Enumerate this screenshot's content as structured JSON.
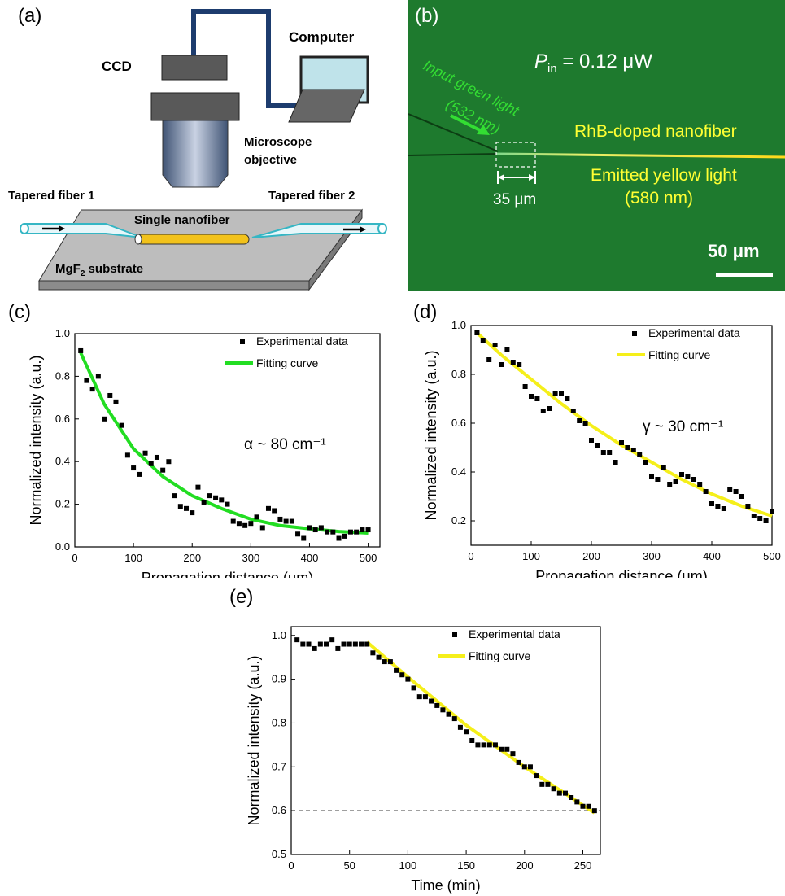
{
  "panels": {
    "a": {
      "label": "(a)",
      "ccd": "CCD",
      "computer": "Computer",
      "objective_line1": "Microscope",
      "objective_line2": "objective",
      "tapered1": "Tapered fiber 1",
      "tapered2": "Tapered fiber 2",
      "nanofiber": "Single nanofiber",
      "substrate_pre": "MgF",
      "substrate_sub": "2",
      "substrate_post": " substrate"
    },
    "b": {
      "label": "(b)",
      "pin_p": "P",
      "pin_sub": "in",
      "pin_val": " = 0.12 μW",
      "input_line1": "Input green light",
      "input_line2": "(532 nm)",
      "rhb": "RhB-doped nanofiber",
      "emit_line1": "Emitted yellow light",
      "emit_line2": "(580 nm)",
      "dist": "35 μm",
      "scale": "50 μm",
      "colors": {
        "background": "#1e7a2e",
        "green_light": "#33dd33",
        "yellow_text": "#ffff33"
      }
    }
  },
  "chart_data": [
    {
      "panel": "(c)",
      "type": "scatter",
      "xlabel": "Propagation distance (μm)",
      "ylabel": "Normalized intensity (a.u.)",
      "xlim": [
        0,
        520
      ],
      "ylim": [
        0,
        1.0
      ],
      "xticks": [
        0,
        100,
        200,
        300,
        400,
        500
      ],
      "yticks": [
        0.0,
        0.2,
        0.4,
        0.6,
        0.8,
        1.0
      ],
      "annotation": "α ~ 80 cm⁻¹",
      "legend": [
        "Experimental data",
        "Fitting curve"
      ],
      "legend_position": "top-right",
      "fit_color": "#22dd22",
      "series": [
        {
          "name": "Experimental data",
          "x": [
            10,
            20,
            30,
            40,
            50,
            60,
            70,
            80,
            90,
            100,
            110,
            120,
            130,
            140,
            150,
            160,
            170,
            180,
            190,
            200,
            210,
            220,
            230,
            240,
            250,
            260,
            270,
            280,
            290,
            300,
            310,
            320,
            330,
            340,
            350,
            360,
            370,
            380,
            390,
            400,
            410,
            420,
            430,
            440,
            450,
            460,
            470,
            480,
            490,
            500
          ],
          "y": [
            0.92,
            0.78,
            0.74,
            0.8,
            0.6,
            0.71,
            0.68,
            0.57,
            0.43,
            0.37,
            0.34,
            0.44,
            0.39,
            0.42,
            0.36,
            0.4,
            0.24,
            0.19,
            0.18,
            0.16,
            0.28,
            0.21,
            0.24,
            0.23,
            0.22,
            0.2,
            0.12,
            0.11,
            0.1,
            0.11,
            0.14,
            0.09,
            0.18,
            0.17,
            0.13,
            0.12,
            0.12,
            0.06,
            0.04,
            0.09,
            0.08,
            0.09,
            0.07,
            0.07,
            0.04,
            0.05,
            0.07,
            0.07,
            0.08,
            0.08
          ]
        },
        {
          "name": "Fitting curve",
          "x": [
            10,
            50,
            100,
            150,
            200,
            250,
            300,
            350,
            400,
            450,
            500
          ],
          "y": [
            0.91,
            0.67,
            0.46,
            0.33,
            0.24,
            0.18,
            0.13,
            0.1,
            0.085,
            0.072,
            0.065
          ]
        }
      ]
    },
    {
      "panel": "(d)",
      "type": "scatter",
      "xlabel": "Propagation distance (μm)",
      "ylabel": "Normalized intensity (a.u.)",
      "xlim": [
        0,
        500
      ],
      "ylim": [
        0.1,
        1.0
      ],
      "xticks": [
        0,
        100,
        200,
        300,
        400,
        500
      ],
      "yticks": [
        0.2,
        0.4,
        0.6,
        0.8,
        1.0
      ],
      "annotation": "γ ~ 30 cm⁻¹",
      "legend": [
        "Experimental data",
        "Fitting curve"
      ],
      "legend_position": "top-right",
      "fit_color": "#f5ef1a",
      "series": [
        {
          "name": "Experimental data",
          "x": [
            10,
            20,
            30,
            40,
            50,
            60,
            70,
            80,
            90,
            100,
            110,
            120,
            130,
            140,
            150,
            160,
            170,
            180,
            190,
            200,
            210,
            220,
            230,
            240,
            250,
            260,
            270,
            280,
            290,
            300,
            310,
            320,
            330,
            340,
            350,
            360,
            370,
            380,
            390,
            400,
            410,
            420,
            430,
            440,
            450,
            460,
            470,
            480,
            490,
            500
          ],
          "y": [
            0.97,
            0.94,
            0.86,
            0.92,
            0.84,
            0.9,
            0.85,
            0.84,
            0.75,
            0.71,
            0.7,
            0.65,
            0.66,
            0.72,
            0.72,
            0.7,
            0.65,
            0.61,
            0.6,
            0.53,
            0.51,
            0.48,
            0.48,
            0.44,
            0.52,
            0.5,
            0.49,
            0.47,
            0.44,
            0.38,
            0.37,
            0.42,
            0.35,
            0.36,
            0.39,
            0.38,
            0.37,
            0.35,
            0.32,
            0.27,
            0.26,
            0.25,
            0.33,
            0.32,
            0.3,
            0.26,
            0.22,
            0.21,
            0.2,
            0.24
          ]
        },
        {
          "name": "Fitting curve",
          "x": [
            10,
            50,
            100,
            150,
            200,
            250,
            300,
            350,
            400,
            450,
            500
          ],
          "y": [
            0.97,
            0.88,
            0.78,
            0.68,
            0.59,
            0.51,
            0.44,
            0.37,
            0.31,
            0.26,
            0.22
          ]
        }
      ]
    },
    {
      "panel": "(e)",
      "type": "scatter",
      "xlabel": "Time (min)",
      "ylabel": "Normalized intensity (a.u.)",
      "xlim": [
        0,
        265
      ],
      "ylim": [
        0.5,
        1.02
      ],
      "xticks": [
        0,
        50,
        100,
        150,
        200,
        250
      ],
      "yticks": [
        0.5,
        0.6,
        0.7,
        0.8,
        0.9,
        1.0
      ],
      "reference_line_y": 0.6,
      "legend": [
        "Experimental data",
        "Fitting curve"
      ],
      "legend_position": "top-right",
      "fit_color": "#f5ef1a",
      "series": [
        {
          "name": "Experimental data",
          "x": [
            5,
            10,
            15,
            20,
            25,
            30,
            35,
            40,
            45,
            50,
            55,
            60,
            65,
            70,
            75,
            80,
            85,
            90,
            95,
            100,
            105,
            110,
            115,
            120,
            125,
            130,
            135,
            140,
            145,
            150,
            155,
            160,
            165,
            170,
            175,
            180,
            185,
            190,
            195,
            200,
            205,
            210,
            215,
            220,
            225,
            230,
            235,
            240,
            245,
            250,
            255,
            260
          ],
          "y": [
            0.99,
            0.98,
            0.98,
            0.97,
            0.98,
            0.98,
            0.99,
            0.97,
            0.98,
            0.98,
            0.98,
            0.98,
            0.98,
            0.96,
            0.95,
            0.94,
            0.94,
            0.92,
            0.91,
            0.9,
            0.88,
            0.86,
            0.86,
            0.85,
            0.84,
            0.83,
            0.82,
            0.81,
            0.79,
            0.78,
            0.76,
            0.75,
            0.75,
            0.75,
            0.75,
            0.74,
            0.74,
            0.73,
            0.71,
            0.7,
            0.7,
            0.68,
            0.66,
            0.66,
            0.65,
            0.64,
            0.64,
            0.63,
            0.62,
            0.61,
            0.61,
            0.6
          ]
        },
        {
          "name": "Fitting curve",
          "x": [
            65,
            100,
            150,
            200,
            260
          ],
          "y": [
            0.985,
            0.905,
            0.795,
            0.7,
            0.595
          ]
        }
      ]
    }
  ]
}
